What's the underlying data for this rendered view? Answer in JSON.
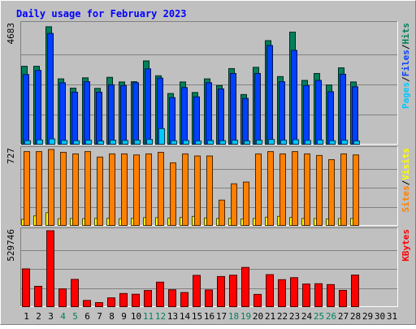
{
  "colors": {
    "background": "#c0c0c0",
    "hits": "#00805c",
    "files": "#0040ff",
    "pages": "#00c8ff",
    "visits": "#ffff00",
    "sites": "#ff8000",
    "kbytes": "#ff0000",
    "title": "#0000ff",
    "weekend_day": "#00805c",
    "weekday": "#000000"
  },
  "chart_data": {
    "type": "bar",
    "title": "Daily usage for February 2023",
    "days": [
      "1",
      "2",
      "3",
      "4",
      "5",
      "6",
      "7",
      "8",
      "9",
      "10",
      "11",
      "12",
      "13",
      "14",
      "15",
      "16",
      "17",
      "18",
      "19",
      "20",
      "21",
      "22",
      "23",
      "24",
      "25",
      "26",
      "27",
      "28",
      "29",
      "30",
      "31"
    ],
    "weekend_days": [
      "4",
      "5",
      "11",
      "12",
      "18",
      "19",
      "25",
      "26"
    ],
    "grid": true,
    "panels": [
      {
        "id": "pages-files-hits",
        "max_label": "4683",
        "ylim": [
          0,
          4683
        ],
        "legend": [
          "Pages",
          "Files",
          "Hits"
        ],
        "series": [
          {
            "name": "Hits",
            "color_key": "hits",
            "values": [
              3050,
              3050,
              4590,
              2560,
              2200,
              2600,
              2190,
              2620,
              2440,
              2450,
              3260,
              2680,
              1990,
              2440,
              2030,
              2560,
              2300,
              2960,
              1950,
              3010,
              4050,
              2650,
              4380,
              2500,
              2770,
              2320,
              2990,
              2440,
              0,
              0,
              0
            ]
          },
          {
            "name": "Files",
            "color_key": "files",
            "values": [
              2730,
              2890,
              4330,
              2410,
              2040,
              2450,
              2040,
              2330,
              2300,
              2410,
              2950,
              2590,
              1830,
              2220,
              1860,
              2410,
              2170,
              2770,
              1800,
              2770,
              3860,
              2450,
              3670,
              2300,
              2500,
              2060,
              2740,
              2250,
              0,
              0,
              0
            ]
          },
          {
            "name": "Pages",
            "color_key": "pages",
            "values": [
              150,
              180,
              220,
              160,
              150,
              170,
              140,
              170,
              160,
              170,
              200,
              620,
              150,
              160,
              140,
              160,
              150,
              170,
              140,
              170,
              200,
              170,
              190,
              160,
              180,
              150,
              170,
              140,
              0,
              0,
              0
            ]
          }
        ]
      },
      {
        "id": "sites-visits",
        "max_label": "727",
        "ylim": [
          0,
          727
        ],
        "legend": [
          "Sites",
          "Visits"
        ],
        "series": [
          {
            "name": "Visits",
            "color_key": "visits",
            "values": [
              62,
              95,
              125,
              68,
              70,
              68,
              72,
              72,
              68,
              72,
              78,
              78,
              72,
              80,
              90,
              75,
              70,
              72,
              65,
              70,
              82,
              90,
              80,
              70,
              70,
              65,
              70,
              70,
              0,
              0,
              0
            ]
          },
          {
            "name": "Sites",
            "color_key": "sites",
            "values": [
              707,
              707,
              727,
              700,
              685,
              707,
              655,
              685,
              685,
              675,
              685,
              700,
              600,
              685,
              665,
              665,
              245,
              400,
              417,
              685,
              707,
              685,
              707,
              685,
              670,
              630,
              685,
              675,
              0,
              0,
              0
            ]
          }
        ]
      },
      {
        "id": "kbytes",
        "max_label": "529746",
        "ylim": [
          0,
          529746
        ],
        "legend": [
          "KBytes"
        ],
        "series": [
          {
            "name": "KBytes",
            "color_key": "kbytes",
            "values": [
              265000,
              144000,
              529746,
              126000,
              192000,
              46000,
              31000,
              64000,
              94000,
              89000,
              115000,
              173000,
              120000,
              101000,
              220000,
              119000,
              212000,
              221000,
              275000,
              88000,
              225000,
              190000,
              204000,
              160000,
              162000,
              156000,
              116000,
              222000,
              0,
              0,
              0
            ]
          }
        ]
      }
    ]
  }
}
